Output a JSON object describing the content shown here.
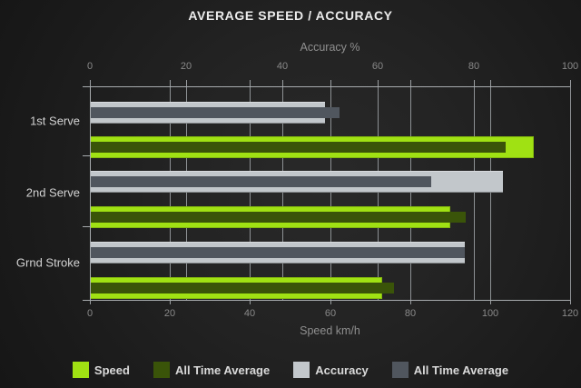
{
  "title": "AVERAGE SPEED / ACCURACY",
  "chart_data": {
    "type": "bar",
    "orientation": "horizontal",
    "title": "AVERAGE SPEED / ACCURACY",
    "categories": [
      "1st Serve",
      "2nd Serve",
      "Grnd Stroke"
    ],
    "axes": {
      "top": {
        "label": "Accuracy %",
        "min": 0,
        "max": 100,
        "ticks": [
          0,
          20,
          40,
          60,
          80,
          100
        ]
      },
      "bottom": {
        "label": "Speed km/h",
        "min": 0,
        "max": 120,
        "ticks": [
          0,
          20,
          40,
          60,
          80,
          100,
          120
        ]
      }
    },
    "series": [
      {
        "name": "Speed",
        "axis": "bottom",
        "color": "#a0e113",
        "values": [
          111,
          90,
          73
        ]
      },
      {
        "name": "All Time Average",
        "axis": "bottom",
        "color": "#3a5409",
        "values": [
          104,
          94,
          76
        ]
      },
      {
        "name": "Accuracy",
        "axis": "top",
        "color": "#c2c7cb",
        "values": [
          49,
          86,
          78
        ]
      },
      {
        "name": "All Time Average",
        "axis": "top",
        "color": "#50565e",
        "values": [
          52,
          71,
          78
        ]
      }
    ],
    "legend": [
      "Speed",
      "All Time Average",
      "Accuracy",
      "All Time Average"
    ],
    "legend_position": "bottom",
    "grid": true
  },
  "colors": {
    "background": "#222222",
    "speed": "#a0e113",
    "speed_all_time_average": "#3a5409",
    "accuracy": "#c2c7cb",
    "accuracy_all_time_average": "#50565e",
    "gridline": "#8d9194",
    "text_muted": "#8f8f8f",
    "text_bright": "#ececec"
  }
}
